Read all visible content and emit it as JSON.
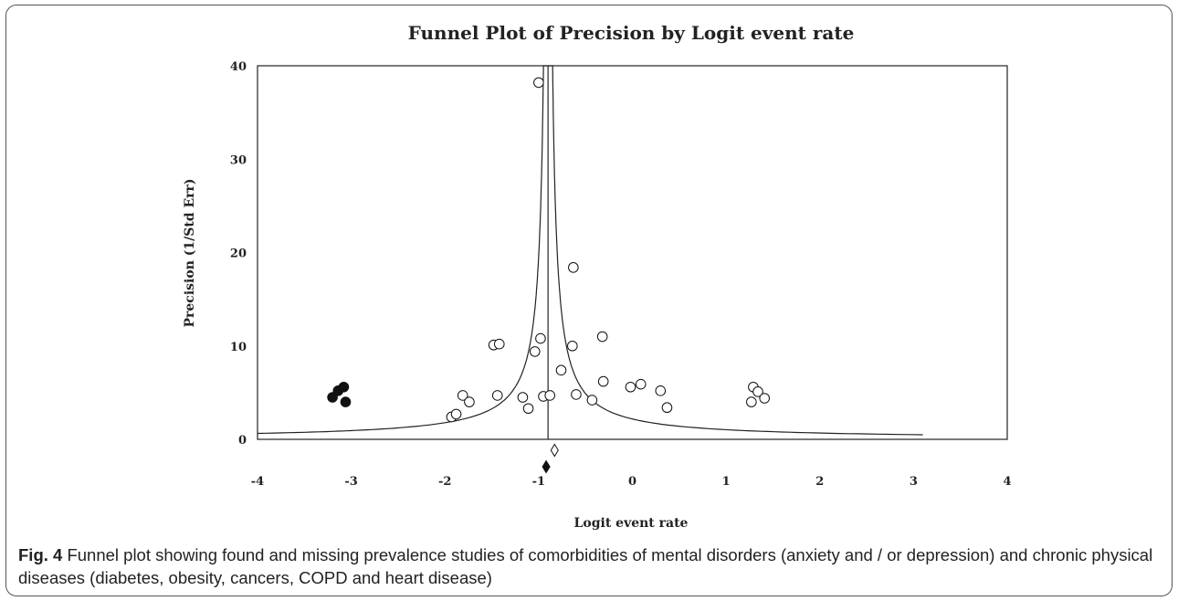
{
  "caption": {
    "label": "Fig. 4",
    "text": "Funnel plot showing found and missing prevalence studies of comorbidities of mental disorders (anxiety and / or depression) and chronic physical diseases (diabetes, obesity, cancers, COPD and heart disease)"
  },
  "chart_data": {
    "type": "scatter",
    "title": "Funnel Plot of Precision by Logit event rate",
    "xlabel": "Logit event rate",
    "ylabel": "Precision (1/Std Err)",
    "xlim": [
      -4,
      4
    ],
    "ylim": [
      0,
      40
    ],
    "xticks": [
      "-4",
      "-3",
      "-2",
      "-1",
      "0",
      "1",
      "2",
      "3",
      "4"
    ],
    "yticks": [
      "0",
      "10",
      "20",
      "30",
      "40"
    ],
    "grid": false,
    "center_line": -0.9,
    "funnel_x_range": [
      -4,
      3.1
    ],
    "series": [
      {
        "kind": "observed",
        "marker": "open-circle",
        "points": [
          [
            -1.0,
            38.2
          ],
          [
            -0.63,
            18.4
          ],
          [
            -1.48,
            10.1
          ],
          [
            -1.42,
            10.2
          ],
          [
            -0.98,
            10.8
          ],
          [
            -1.04,
            9.4
          ],
          [
            -0.64,
            10.0
          ],
          [
            -0.32,
            11.0
          ],
          [
            -0.76,
            7.4
          ],
          [
            -0.31,
            6.2
          ],
          [
            -0.02,
            5.6
          ],
          [
            0.09,
            5.9
          ],
          [
            0.3,
            5.2
          ],
          [
            1.29,
            5.6
          ],
          [
            1.34,
            5.1
          ],
          [
            1.41,
            4.4
          ],
          [
            -1.81,
            4.7
          ],
          [
            -1.74,
            4.0
          ],
          [
            -1.44,
            4.7
          ],
          [
            -1.17,
            4.5
          ],
          [
            -0.95,
            4.6
          ],
          [
            -0.88,
            4.7
          ],
          [
            -0.6,
            4.8
          ],
          [
            -0.43,
            4.2
          ],
          [
            0.37,
            3.4
          ],
          [
            1.27,
            4.0
          ],
          [
            -1.11,
            3.3
          ],
          [
            -1.93,
            2.4
          ],
          [
            -1.88,
            2.7
          ]
        ]
      },
      {
        "kind": "imputed",
        "marker": "filled-circle",
        "points": [
          [
            -3.2,
            4.5
          ],
          [
            -3.14,
            5.2
          ],
          [
            -3.08,
            5.6
          ],
          [
            -3.06,
            4.0
          ]
        ]
      }
    ],
    "summary_markers": [
      {
        "kind": "observed",
        "marker": "open-diamond",
        "x": -0.83
      },
      {
        "kind": "adjusted",
        "marker": "filled-diamond",
        "x": -0.92
      }
    ]
  }
}
